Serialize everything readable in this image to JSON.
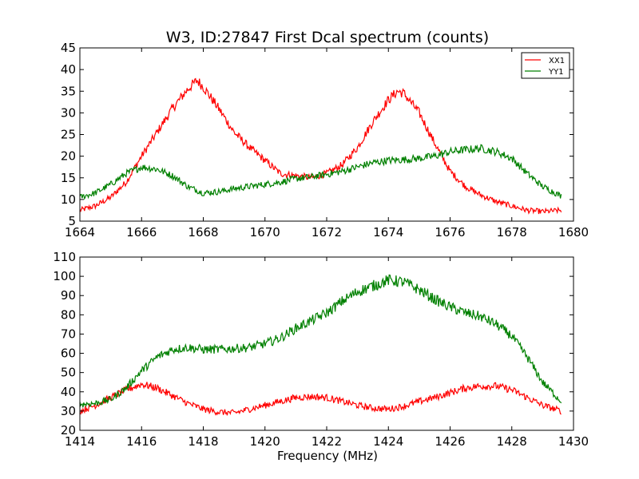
{
  "chart_data": [
    {
      "type": "line",
      "title": "W3, ID:27847 First Dcal spectrum (counts)",
      "xlabel": "",
      "ylabel": "",
      "xlim": [
        1664,
        1680
      ],
      "ylim": [
        5,
        45
      ],
      "xticks": [
        1664,
        1666,
        1668,
        1670,
        1672,
        1674,
        1676,
        1678,
        1680
      ],
      "yticks": [
        5,
        10,
        15,
        20,
        25,
        30,
        35,
        40,
        45
      ],
      "grid": false,
      "legend": "top-right",
      "series": [
        {
          "name": "XX1",
          "color": "#ff0000",
          "x": [
            1664.0,
            1664.5,
            1665.0,
            1665.5,
            1666.0,
            1666.5,
            1667.0,
            1667.5,
            1667.8,
            1668.0,
            1668.5,
            1669.0,
            1669.5,
            1670.0,
            1670.5,
            1671.0,
            1671.5,
            1672.0,
            1672.5,
            1673.0,
            1673.5,
            1674.0,
            1674.3,
            1674.5,
            1675.0,
            1675.5,
            1676.0,
            1676.5,
            1677.0,
            1677.5,
            1678.0,
            1678.5,
            1679.0,
            1679.6
          ],
          "y": [
            7.5,
            8.5,
            10.5,
            14.0,
            20.0,
            25.5,
            31.0,
            35.5,
            37.5,
            36.0,
            31.0,
            25.5,
            22.0,
            19.0,
            16.0,
            15.5,
            15.0,
            16.0,
            18.0,
            22.0,
            28.0,
            33.0,
            35.0,
            34.5,
            30.0,
            23.0,
            16.5,
            13.0,
            11.0,
            9.5,
            8.5,
            7.5,
            7.2,
            7.5
          ]
        },
        {
          "name": "YY1",
          "color": "#008000",
          "x": [
            1664.0,
            1664.5,
            1665.0,
            1665.5,
            1666.0,
            1666.5,
            1667.0,
            1667.5,
            1668.0,
            1668.5,
            1669.0,
            1669.5,
            1670.0,
            1670.5,
            1671.0,
            1671.5,
            1672.0,
            1672.5,
            1673.0,
            1673.5,
            1674.0,
            1674.5,
            1675.0,
            1675.5,
            1676.0,
            1676.5,
            1677.0,
            1677.5,
            1678.0,
            1678.5,
            1679.0,
            1679.6
          ],
          "y": [
            10.5,
            11.5,
            13.5,
            16.0,
            17.5,
            17.0,
            15.5,
            13.0,
            11.5,
            11.8,
            12.5,
            13.0,
            13.5,
            14.0,
            14.8,
            15.2,
            15.8,
            16.5,
            17.5,
            18.5,
            19.0,
            19.2,
            19.5,
            20.0,
            21.0,
            21.5,
            21.8,
            21.0,
            19.5,
            16.0,
            13.0,
            10.8
          ]
        }
      ]
    },
    {
      "type": "line",
      "title": "",
      "xlabel": "Frequency (MHz)",
      "ylabel": "",
      "xlim": [
        1414,
        1430
      ],
      "ylim": [
        20,
        110
      ],
      "xticks": [
        1414,
        1416,
        1418,
        1420,
        1422,
        1424,
        1426,
        1428,
        1430
      ],
      "yticks": [
        20,
        30,
        40,
        50,
        60,
        70,
        80,
        90,
        100,
        110
      ],
      "grid": false,
      "legend": "none",
      "series": [
        {
          "name": "XX1",
          "color": "#ff0000",
          "x": [
            1414.0,
            1414.5,
            1415.0,
            1415.5,
            1416.0,
            1416.5,
            1417.0,
            1417.5,
            1418.0,
            1418.5,
            1419.0,
            1419.5,
            1420.0,
            1420.5,
            1421.0,
            1421.5,
            1422.0,
            1422.5,
            1423.0,
            1423.5,
            1424.0,
            1424.5,
            1425.0,
            1425.5,
            1426.0,
            1426.5,
            1427.0,
            1427.5,
            1428.0,
            1428.5,
            1429.0,
            1429.6
          ],
          "y": [
            30.0,
            33.0,
            37.0,
            41.0,
            44.0,
            42.0,
            38.0,
            34.0,
            31.0,
            29.5,
            29.0,
            31.0,
            33.0,
            35.0,
            37.0,
            37.5,
            37.0,
            35.0,
            33.0,
            31.5,
            31.0,
            32.5,
            35.0,
            37.0,
            39.5,
            42.0,
            43.0,
            43.0,
            41.0,
            37.0,
            33.0,
            30.0
          ]
        },
        {
          "name": "YY1",
          "color": "#008000",
          "x": [
            1414.0,
            1414.5,
            1415.0,
            1415.5,
            1416.0,
            1416.5,
            1417.0,
            1417.5,
            1418.0,
            1418.5,
            1419.0,
            1419.5,
            1420.0,
            1420.5,
            1421.0,
            1421.5,
            1422.0,
            1422.5,
            1423.0,
            1423.5,
            1424.0,
            1424.5,
            1425.0,
            1425.5,
            1426.0,
            1426.5,
            1427.0,
            1427.5,
            1428.0,
            1428.5,
            1429.0,
            1429.6
          ],
          "y": [
            33.5,
            34.0,
            36.0,
            42.0,
            51.0,
            58.0,
            62.0,
            63.0,
            62.0,
            62.0,
            62.5,
            63.0,
            65.0,
            68.0,
            73.0,
            77.0,
            81.0,
            87.0,
            92.0,
            95.0,
            98.0,
            97.0,
            93.0,
            88.0,
            84.0,
            81.0,
            79.0,
            75.0,
            69.0,
            58.0,
            45.0,
            35.0
          ]
        }
      ]
    }
  ]
}
